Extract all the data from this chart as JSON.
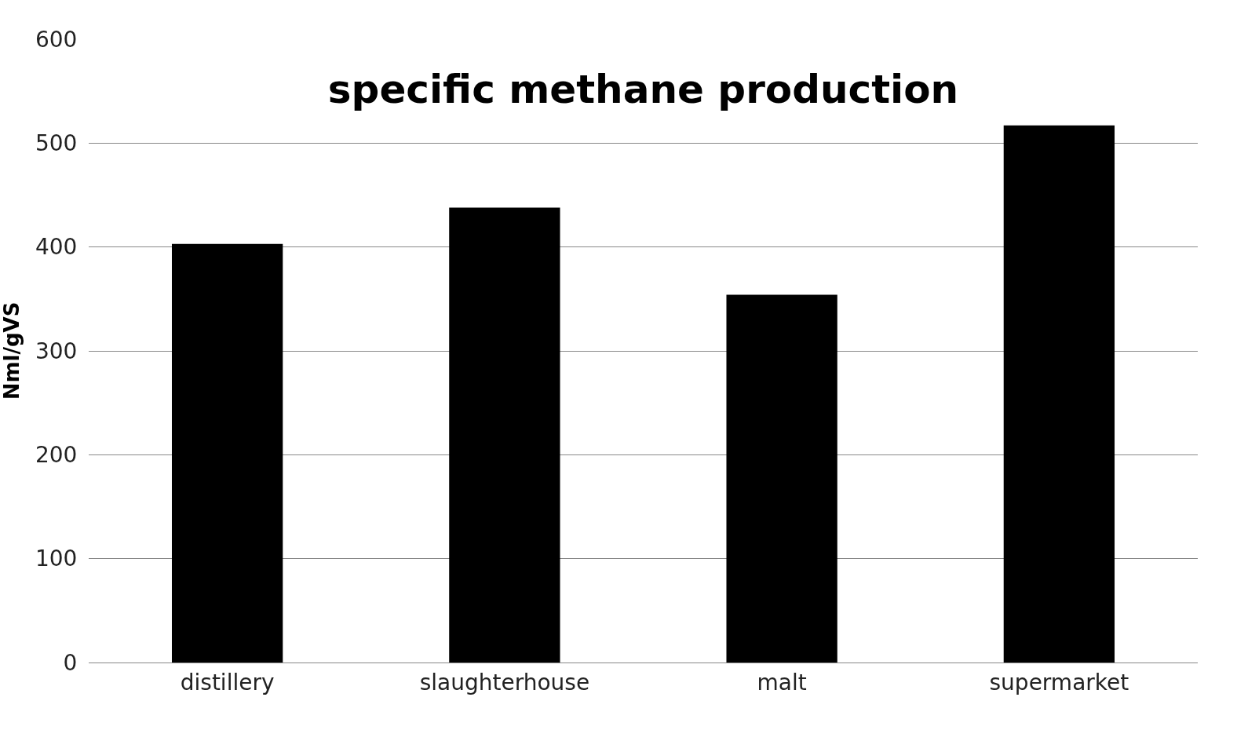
{
  "chart_data": {
    "type": "bar",
    "title": "specific methane production",
    "ylabel": "Nml/gVS",
    "categories": [
      "distillery",
      "slaughterhouse",
      "malt",
      "supermarket"
    ],
    "values": [
      403,
      438,
      354,
      517
    ],
    "color": "#000000",
    "ylim": [
      0,
      600
    ],
    "yticks": [
      0,
      100,
      200,
      300,
      400,
      500,
      600
    ],
    "grid": "y",
    "legend": false
  }
}
